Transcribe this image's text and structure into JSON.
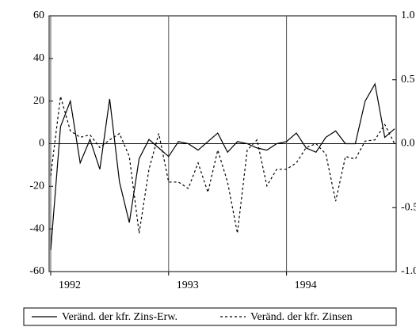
{
  "chart_data": {
    "type": "line",
    "categories": [
      "1992",
      null,
      null,
      null,
      null,
      null,
      null,
      null,
      null,
      null,
      null,
      null,
      "1993",
      null,
      null,
      null,
      null,
      null,
      null,
      null,
      null,
      null,
      null,
      null,
      "1994",
      null,
      null,
      null,
      null,
      null,
      null,
      null,
      null,
      null,
      null,
      null
    ],
    "series": [
      {
        "name": "Veränd. der kfr. Zins-Erw.",
        "color": "#000000",
        "line_style": "solid",
        "values": [
          -50,
          8,
          20,
          -9,
          2,
          -12,
          21,
          -18,
          -37,
          -7,
          2,
          -2,
          -6,
          1,
          0,
          -3,
          1,
          5,
          -4,
          1,
          0,
          -2,
          -3,
          0,
          1,
          5,
          -2,
          -4,
          3,
          6,
          0,
          0,
          20,
          28,
          3,
          7
        ]
      },
      {
        "name": "Veränd. der kfr. Zinsen",
        "color": "#000000",
        "line_style": "dashed",
        "axis": "y2",
        "values": [
          -0.25,
          0.37,
          0.1,
          0.05,
          0.07,
          -0.03,
          0.03,
          0.08,
          -0.1,
          -0.7,
          -0.2,
          0.08,
          -0.3,
          -0.3,
          -0.35,
          -0.15,
          -0.38,
          -0.05,
          -0.3,
          -0.7,
          -0.05,
          0.03,
          -0.33,
          -0.2,
          -0.2,
          -0.15,
          -0.03,
          0.0,
          -0.08,
          -0.45,
          -0.1,
          -0.12,
          0.02,
          0.03,
          0.15,
          0.0
        ]
      }
    ],
    "ylim": [
      -60,
      60
    ],
    "yticks": [
      60,
      40,
      20,
      0,
      -20,
      -40,
      -60
    ],
    "y2lim": [
      -1,
      1
    ],
    "y2ticks": [
      {
        "value": 1,
        "label": "1.0"
      },
      {
        "value": 0.5,
        "label": "0.5"
      },
      {
        "value": 0,
        "label": "0.0"
      },
      {
        "value": -0.5,
        "label": "-0.5"
      },
      {
        "value": -1,
        "label": "-1.0"
      }
    ],
    "zero_line": true,
    "year_dividers": true,
    "legend": "bottom"
  }
}
